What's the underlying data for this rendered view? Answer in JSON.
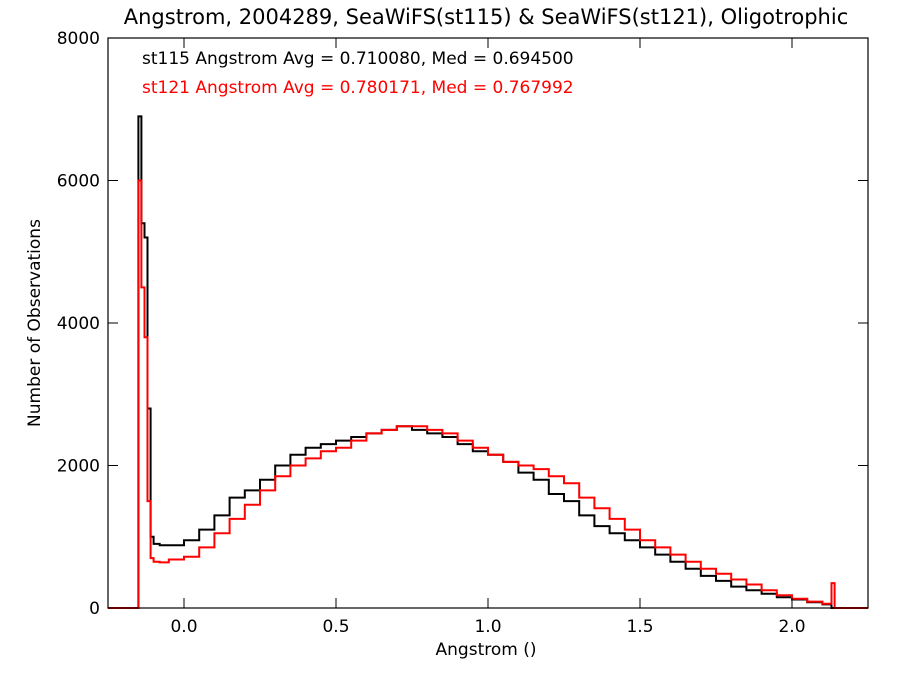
{
  "chart_data": {
    "type": "step-histogram",
    "title": "Angstrom, 2004289, SeaWiFS(st115) & SeaWiFS(st121), Oligotrophic",
    "xlabel": "Angstrom ()",
    "ylabel": "Number of Observations",
    "xlim": [
      -0.25,
      2.25
    ],
    "ylim": [
      0,
      8000
    ],
    "xticks": [
      0.0,
      0.5,
      1.0,
      1.5,
      2.0
    ],
    "xtick_labels": [
      "0.0",
      "0.5",
      "1.0",
      "1.5",
      "2.0"
    ],
    "yticks": [
      0,
      2000,
      4000,
      6000,
      8000
    ],
    "ytick_labels": [
      "0",
      "2000",
      "4000",
      "6000",
      "8000"
    ],
    "grid": false,
    "annotations": [
      {
        "text": "st115 Angstrom Avg = 0.710080, Med = 0.694500",
        "color": "#000000"
      },
      {
        "text": "st121 Angstrom Avg = 0.780171, Med = 0.767992",
        "color": "#ff0000"
      }
    ],
    "series": [
      {
        "color": "#000000",
        "x": [
          -0.25,
          -0.16,
          -0.15,
          -0.14,
          -0.13,
          -0.12,
          -0.11,
          -0.1,
          -0.08,
          -0.05,
          0.0,
          0.05,
          0.1,
          0.15,
          0.2,
          0.25,
          0.3,
          0.35,
          0.4,
          0.45,
          0.5,
          0.55,
          0.6,
          0.65,
          0.7,
          0.75,
          0.8,
          0.85,
          0.9,
          0.95,
          1.0,
          1.05,
          1.1,
          1.15,
          1.2,
          1.25,
          1.3,
          1.35,
          1.4,
          1.45,
          1.5,
          1.55,
          1.6,
          1.65,
          1.7,
          1.75,
          1.8,
          1.85,
          1.9,
          1.95,
          2.0,
          2.05,
          2.1,
          2.13,
          2.14,
          2.25
        ],
        "y": [
          0,
          0,
          6900,
          5400,
          5200,
          2800,
          1000,
          900,
          880,
          880,
          950,
          1100,
          1300,
          1550,
          1650,
          1800,
          2000,
          2150,
          2250,
          2300,
          2350,
          2400,
          2450,
          2500,
          2550,
          2500,
          2450,
          2400,
          2300,
          2200,
          2150,
          2050,
          1900,
          1800,
          1600,
          1500,
          1300,
          1150,
          1050,
          950,
          850,
          750,
          650,
          550,
          450,
          380,
          300,
          250,
          200,
          150,
          120,
          80,
          50,
          0,
          0,
          0
        ]
      },
      {
        "color": "#ff0000",
        "x": [
          -0.25,
          -0.16,
          -0.15,
          -0.14,
          -0.13,
          -0.12,
          -0.11,
          -0.1,
          -0.08,
          -0.05,
          0.0,
          0.05,
          0.1,
          0.15,
          0.2,
          0.25,
          0.3,
          0.35,
          0.4,
          0.45,
          0.5,
          0.55,
          0.6,
          0.65,
          0.7,
          0.75,
          0.8,
          0.85,
          0.9,
          0.95,
          1.0,
          1.05,
          1.1,
          1.15,
          1.2,
          1.25,
          1.3,
          1.35,
          1.4,
          1.45,
          1.5,
          1.55,
          1.6,
          1.65,
          1.7,
          1.75,
          1.8,
          1.85,
          1.9,
          1.95,
          2.0,
          2.05,
          2.1,
          2.13,
          2.14,
          2.25
        ],
        "y": [
          0,
          0,
          6000,
          4500,
          3800,
          1500,
          700,
          650,
          640,
          680,
          720,
          850,
          1050,
          1250,
          1450,
          1650,
          1850,
          2000,
          2100,
          2200,
          2250,
          2350,
          2450,
          2500,
          2550,
          2550,
          2500,
          2450,
          2350,
          2250,
          2150,
          2050,
          2000,
          1950,
          1850,
          1750,
          1550,
          1400,
          1250,
          1100,
          950,
          850,
          750,
          650,
          550,
          480,
          400,
          330,
          250,
          180,
          130,
          90,
          60,
          350,
          0,
          0
        ]
      }
    ]
  }
}
